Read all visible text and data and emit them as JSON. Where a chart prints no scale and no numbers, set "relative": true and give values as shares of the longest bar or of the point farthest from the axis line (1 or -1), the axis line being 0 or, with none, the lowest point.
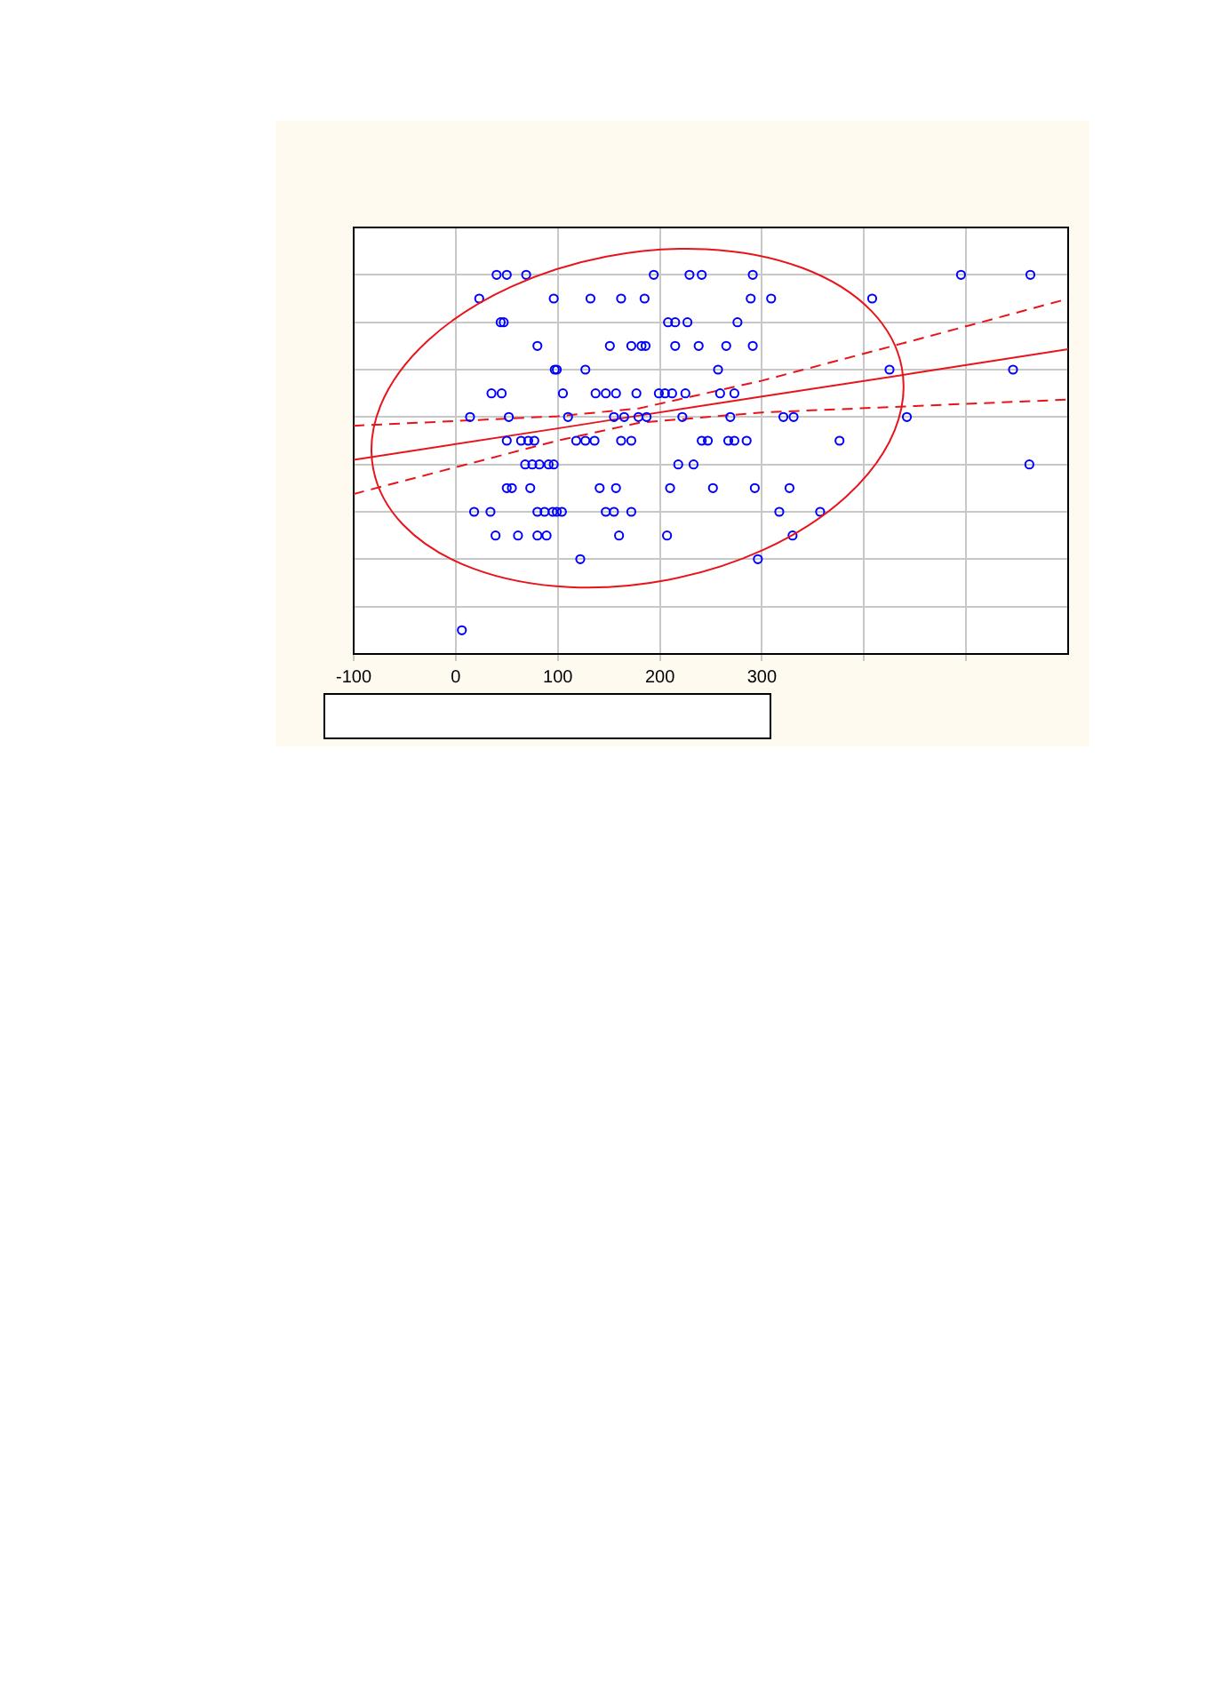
{
  "chart_data": {
    "type": "scatter",
    "relative": true,
    "tick_labels": "x",
    "grid": true,
    "xlim": [
      -100,
      600
    ],
    "xticks": [
      -100,
      0,
      100,
      200,
      300,
      {
        "value": 400,
        "label": null
      },
      {
        "value": 500,
        "label": null
      }
    ],
    "series": [
      {
        "color": "#0000ff",
        "marker": "circle",
        "x": [
          40,
          50,
          69,
          194,
          229,
          241,
          291,
          495,
          563,
          23,
          96,
          132,
          162,
          185,
          289,
          309,
          408,
          44,
          47,
          208,
          215,
          227,
          276,
          80,
          151,
          172,
          182,
          186,
          215,
          238,
          265,
          291,
          97,
          99,
          127,
          257,
          425,
          546,
          35,
          45,
          105,
          137,
          147,
          157,
          177,
          199,
          205,
          212,
          225,
          259,
          273,
          14,
          52,
          110,
          155,
          165,
          179,
          187,
          222,
          269,
          321,
          331,
          442,
          50,
          64,
          71,
          77,
          118,
          127,
          136,
          162,
          172,
          241,
          247,
          267,
          273,
          285,
          376,
          68,
          75,
          82,
          91,
          96,
          218,
          233,
          562,
          50,
          55,
          73,
          141,
          157,
          210,
          252,
          293,
          327,
          18,
          34,
          80,
          87,
          95,
          99,
          104,
          147,
          155,
          172,
          317,
          357,
          39,
          61,
          80,
          89,
          160,
          207,
          330,
          122,
          296,
          6
        ],
        "values": [
          1,
          1,
          1,
          1,
          1,
          1,
          1,
          1,
          1,
          0.9375,
          0.9375,
          0.9375,
          0.9375,
          0.9375,
          0.9375,
          0.9375,
          0.9375,
          0.875,
          0.875,
          0.875,
          0.875,
          0.875,
          0.875,
          0.8125,
          0.8125,
          0.8125,
          0.8125,
          0.8125,
          0.8125,
          0.8125,
          0.8125,
          0.8125,
          0.75,
          0.75,
          0.75,
          0.75,
          0.75,
          0.75,
          0.6875,
          0.6875,
          0.6875,
          0.6875,
          0.6875,
          0.6875,
          0.6875,
          0.6875,
          0.6875,
          0.6875,
          0.6875,
          0.6875,
          0.6875,
          0.625,
          0.625,
          0.625,
          0.625,
          0.625,
          0.625,
          0.625,
          0.625,
          0.625,
          0.625,
          0.625,
          0.625,
          0.5625,
          0.5625,
          0.5625,
          0.5625,
          0.5625,
          0.5625,
          0.5625,
          0.5625,
          0.5625,
          0.5625,
          0.5625,
          0.5625,
          0.5625,
          0.5625,
          0.5625,
          0.5,
          0.5,
          0.5,
          0.5,
          0.5,
          0.5,
          0.5,
          0.5,
          0.4375,
          0.4375,
          0.4375,
          0.4375,
          0.4375,
          0.4375,
          0.4375,
          0.4375,
          0.4375,
          0.375,
          0.375,
          0.375,
          0.375,
          0.375,
          0.375,
          0.375,
          0.375,
          0.375,
          0.375,
          0.375,
          0.375,
          0.3125,
          0.3125,
          0.3125,
          0.3125,
          0.3125,
          0.3125,
          0.3125,
          0.25,
          0.25,
          0.0625
        ]
      },
      {
        "type": "line",
        "color": "#e8141c",
        "marker": "none",
        "line_style": "solid",
        "x": [
          -100,
          100,
          180,
          300,
          450,
          600
        ],
        "values": [
          0.512,
          0.595,
          0.629,
          0.679,
          0.741,
          0.804
        ]
      },
      {
        "type": "line",
        "color": "#e8141c",
        "marker": "none",
        "line_style": "dashed",
        "x": [
          -100,
          100,
          180,
          300,
          450,
          600
        ],
        "values": [
          0.602,
          0.627,
          0.648,
          0.721,
          0.828,
          0.937
        ]
      },
      {
        "type": "line",
        "color": "#e8141c",
        "marker": "none",
        "line_style": "dashed",
        "x": [
          -100,
          100,
          180,
          300,
          450,
          600
        ],
        "values": [
          0.422,
          0.563,
          0.61,
          0.637,
          0.654,
          0.671
        ]
      }
    ]
  }
}
